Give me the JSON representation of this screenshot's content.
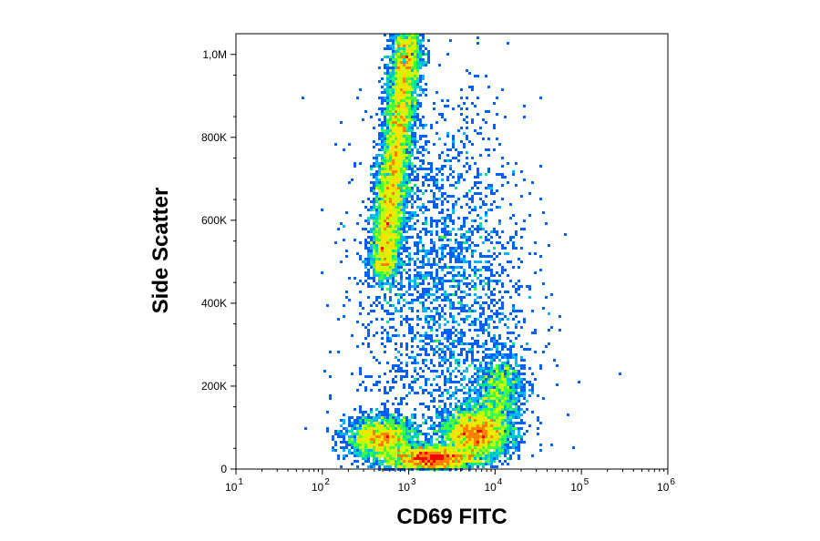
{
  "chart_data": {
    "type": "scatter",
    "xlabel": "CD69 FITC",
    "ylabel": "Side Scatter",
    "x_scale": "log",
    "xlim": [
      10,
      1000000
    ],
    "ylim": [
      0,
      1050000
    ],
    "x_ticks": [
      {
        "value": 10,
        "base": "10",
        "exp": "1"
      },
      {
        "value": 100,
        "base": "10",
        "exp": "2"
      },
      {
        "value": 1000,
        "base": "10",
        "exp": "3"
      },
      {
        "value": 10000,
        "base": "10",
        "exp": "4"
      },
      {
        "value": 100000,
        "base": "10",
        "exp": "5"
      },
      {
        "value": 1000000,
        "base": "10",
        "exp": "6"
      }
    ],
    "y_ticks": [
      {
        "value": 0,
        "label": "0"
      },
      {
        "value": 200000,
        "label": "200K"
      },
      {
        "value": 400000,
        "label": "400K"
      },
      {
        "value": 600000,
        "label": "600K"
      },
      {
        "value": 800000,
        "label": "800K"
      },
      {
        "value": 1000000,
        "label": "1,0M"
      }
    ],
    "grid": false,
    "colormap": [
      "#0000c8",
      "#0060ff",
      "#00b4ff",
      "#00e0a0",
      "#40ff40",
      "#c8ff00",
      "#ffe000",
      "#ff8000",
      "#ff0000"
    ],
    "populations": [
      {
        "x": [
          500,
          1100
        ],
        "y": [
          700000,
          80000
        ]
      },
      {
        "x": [
          480,
          1.6
        ],
        "y": [
          75000,
          25000
        ]
      },
      {
        "x": [
          1800,
          1.8
        ],
        "y": [
          25000,
          15000
        ]
      },
      {
        "x": [
          6000,
          1.6
        ],
        "y": [
          85000,
          30000
        ]
      },
      {
        "x": [
          11000,
          1.4
        ],
        "y": [
          190000,
          45000
        ]
      },
      {
        "x": [
          2500,
          3.0
        ],
        "y": [
          430000,
          220000
        ]
      }
    ]
  }
}
